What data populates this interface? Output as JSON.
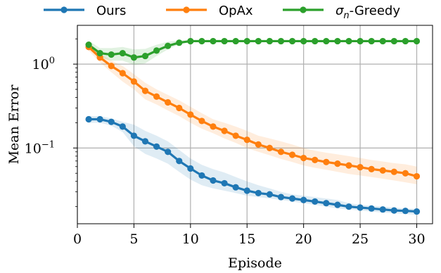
{
  "chart_data": {
    "type": "line",
    "title": "",
    "xlabel": "Episode",
    "ylabel": "Mean Error",
    "xlim": [
      0,
      31.4
    ],
    "ylim": [
      0.0125,
      2.9
    ],
    "yscale": "log",
    "grid": true,
    "legend_position": "top",
    "x_ticks": [
      0,
      5,
      10,
      15,
      20,
      25,
      30
    ],
    "y_ticks": [
      {
        "value": 1,
        "base": "10",
        "exp": "0"
      },
      {
        "value": 0.1,
        "base": "10",
        "exp": "−1"
      }
    ],
    "x": [
      1,
      2,
      3,
      4,
      5,
      6,
      7,
      8,
      9,
      10,
      11,
      12,
      13,
      14,
      15,
      16,
      17,
      18,
      19,
      20,
      21,
      22,
      23,
      24,
      25,
      26,
      27,
      28,
      29,
      30
    ],
    "series": [
      {
        "name": "Ours",
        "color": "#1f77b4",
        "values": [
          0.22,
          0.22,
          0.205,
          0.18,
          0.14,
          0.12,
          0.104,
          0.09,
          0.07,
          0.057,
          0.047,
          0.041,
          0.038,
          0.034,
          0.031,
          0.029,
          0.028,
          0.026,
          0.025,
          0.024,
          0.023,
          0.022,
          0.021,
          0.02,
          0.0195,
          0.019,
          0.0185,
          0.018,
          0.0178,
          0.0175
        ],
        "band_lower": [
          0.2,
          0.2,
          0.185,
          0.155,
          0.105,
          0.085,
          0.075,
          0.065,
          0.052,
          0.042,
          0.036,
          0.033,
          0.031,
          0.029,
          0.027,
          0.026,
          0.025,
          0.024,
          0.023,
          0.022,
          0.021,
          0.02,
          0.019,
          0.0185,
          0.018,
          0.0175,
          0.017,
          0.0167,
          0.0163,
          0.016
        ],
        "band_upper": [
          0.24,
          0.24,
          0.225,
          0.205,
          0.19,
          0.16,
          0.14,
          0.12,
          0.095,
          0.075,
          0.063,
          0.056,
          0.051,
          0.045,
          0.04,
          0.036,
          0.033,
          0.03,
          0.028,
          0.027,
          0.026,
          0.025,
          0.024,
          0.022,
          0.021,
          0.0205,
          0.02,
          0.0195,
          0.019,
          0.0188
        ]
      },
      {
        "name": "OpAx",
        "color": "#ff7f0e",
        "values": [
          1.6,
          1.2,
          0.95,
          0.78,
          0.62,
          0.48,
          0.41,
          0.35,
          0.3,
          0.25,
          0.21,
          0.18,
          0.16,
          0.14,
          0.125,
          0.11,
          0.1,
          0.09,
          0.083,
          0.076,
          0.072,
          0.068,
          0.065,
          0.062,
          0.059,
          0.056,
          0.054,
          0.052,
          0.05,
          0.046
        ],
        "band_lower": [
          1.45,
          1.05,
          0.8,
          0.62,
          0.5,
          0.38,
          0.33,
          0.28,
          0.24,
          0.2,
          0.17,
          0.15,
          0.13,
          0.115,
          0.1,
          0.09,
          0.082,
          0.074,
          0.068,
          0.062,
          0.058,
          0.055,
          0.052,
          0.049,
          0.047,
          0.045,
          0.043,
          0.041,
          0.039,
          0.037
        ],
        "band_upper": [
          1.75,
          1.35,
          1.1,
          0.95,
          0.76,
          0.6,
          0.5,
          0.43,
          0.37,
          0.31,
          0.26,
          0.22,
          0.2,
          0.18,
          0.16,
          0.14,
          0.13,
          0.12,
          0.11,
          0.1,
          0.093,
          0.088,
          0.084,
          0.08,
          0.076,
          0.072,
          0.069,
          0.066,
          0.064,
          0.06
        ]
      },
      {
        "name": "σn-Greedy",
        "color": "#2ca02c",
        "values": [
          1.7,
          1.35,
          1.3,
          1.35,
          1.2,
          1.25,
          1.45,
          1.65,
          1.8,
          1.88,
          1.88,
          1.88,
          1.88,
          1.88,
          1.88,
          1.88,
          1.88,
          1.88,
          1.88,
          1.88,
          1.88,
          1.88,
          1.88,
          1.88,
          1.88,
          1.88,
          1.88,
          1.88,
          1.88,
          1.88
        ],
        "band_lower": [
          1.55,
          1.2,
          1.1,
          1.1,
          0.98,
          1.02,
          1.25,
          1.5,
          1.72,
          1.85,
          1.85,
          1.85,
          1.85,
          1.85,
          1.85,
          1.85,
          1.85,
          1.85,
          1.85,
          1.85,
          1.85,
          1.85,
          1.85,
          1.85,
          1.85,
          1.85,
          1.85,
          1.85,
          1.85,
          1.85
        ],
        "band_upper": [
          1.9,
          1.55,
          1.55,
          1.6,
          1.5,
          1.52,
          1.7,
          1.85,
          1.92,
          1.92,
          1.92,
          1.92,
          1.92,
          1.92,
          1.92,
          1.92,
          1.92,
          1.92,
          1.92,
          1.92,
          1.92,
          1.92,
          1.92,
          1.92,
          1.92,
          1.92,
          1.92,
          1.92,
          1.92,
          1.92
        ]
      }
    ]
  }
}
